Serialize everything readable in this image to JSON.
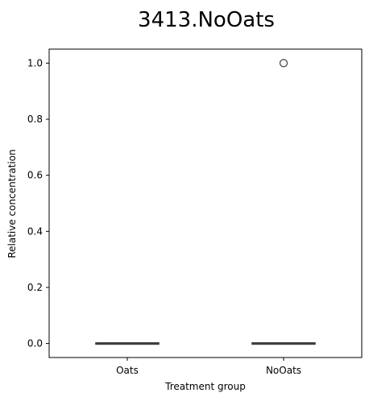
{
  "chart_data": {
    "type": "box",
    "title": "3413.NoOats",
    "xlabel": "Treatment group",
    "ylabel": "Relative concentration",
    "categories": [
      "Oats",
      "NoOats"
    ],
    "ylim": [
      -0.05,
      1.05
    ],
    "yticks": [
      0.0,
      0.2,
      0.4,
      0.6,
      0.8,
      1.0
    ],
    "ytick_labels": [
      "0.0",
      "0.2",
      "0.4",
      "0.6",
      "0.8",
      "1.0"
    ],
    "grid": false,
    "boxes": [
      {
        "category": "Oats",
        "min": 0,
        "q1": 0,
        "median": 0,
        "q3": 0,
        "max": 0,
        "outliers": []
      },
      {
        "category": "NoOats",
        "min": 0,
        "q1": 0,
        "median": 0,
        "q3": 0,
        "max": 0,
        "outliers": [
          1.0
        ]
      }
    ],
    "colors": {
      "box_line": "#3d3d3d",
      "box_fill": "#1f77b4",
      "axis": "#000000"
    }
  }
}
